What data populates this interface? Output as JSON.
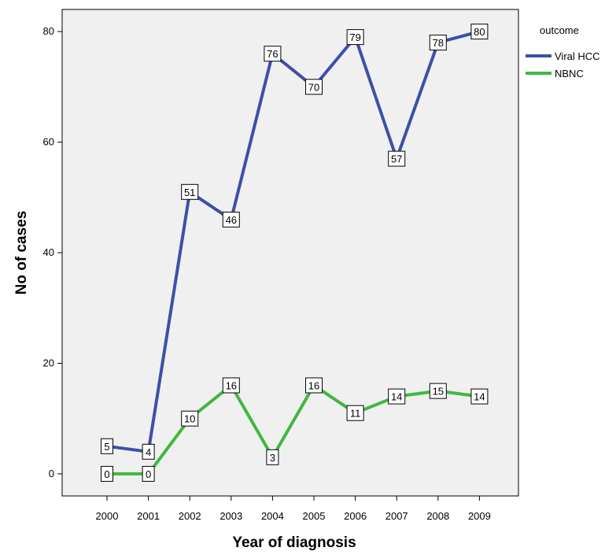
{
  "chart_data": {
    "type": "line",
    "title": "",
    "xlabel": "Year of diagnosis",
    "ylabel": "No of cases",
    "categories": [
      "2000",
      "2001",
      "2002",
      "2003",
      "2004",
      "2005",
      "2006",
      "2007",
      "2008",
      "2009"
    ],
    "ylim": [
      -4,
      84
    ],
    "yticks": [
      0,
      20,
      40,
      60,
      80
    ],
    "grid": false,
    "background": "#f0f0f0",
    "legend": {
      "title": "outcome",
      "position": "top-right"
    },
    "series": [
      {
        "name": "Viral HCC",
        "color": "#3f4fa8",
        "values": [
          5,
          4,
          51,
          46,
          76,
          70,
          79,
          57,
          78,
          80
        ]
      },
      {
        "name": "NBNC",
        "color": "#3fb83f",
        "values": [
          0,
          0,
          10,
          16,
          3,
          16,
          11,
          14,
          15,
          14
        ]
      }
    ]
  }
}
